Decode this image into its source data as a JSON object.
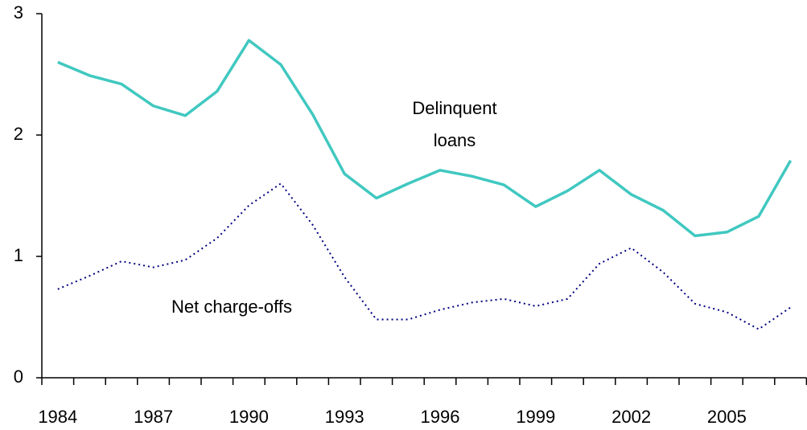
{
  "chart_data": {
    "type": "line",
    "categories": [
      "1984",
      null,
      null,
      "1987",
      null,
      null,
      "1990",
      null,
      null,
      "1993",
      null,
      null,
      "1996",
      null,
      null,
      "1999",
      null,
      null,
      "2002",
      null,
      null,
      "2005",
      null,
      null
    ],
    "series": [
      {
        "color": "#40c8c0",
        "style": "solid",
        "values": [
          2.6,
          2.49,
          2.42,
          2.24,
          2.16,
          2.36,
          2.78,
          2.58,
          2.17,
          1.68,
          1.48,
          1.6,
          1.71,
          1.66,
          1.59,
          1.41,
          1.54,
          1.71,
          1.51,
          1.38,
          1.17,
          1.2,
          1.33,
          1.79
        ]
      },
      {
        "color": "#000080",
        "style": "dotted",
        "values": [
          0.73,
          0.84,
          0.96,
          0.91,
          0.97,
          1.15,
          1.42,
          1.6,
          1.26,
          0.83,
          0.48,
          0.48,
          0.56,
          0.62,
          0.65,
          0.59,
          0.65,
          0.94,
          1.07,
          0.87,
          0.61,
          0.54,
          0.4,
          0.58
        ]
      }
    ],
    "annotations": [
      "Delinquent",
      "loans",
      "Net charge-offs"
    ],
    "ylim": [
      0,
      3
    ],
    "yticks": [
      0,
      1,
      2,
      3
    ],
    "grid": false
  }
}
